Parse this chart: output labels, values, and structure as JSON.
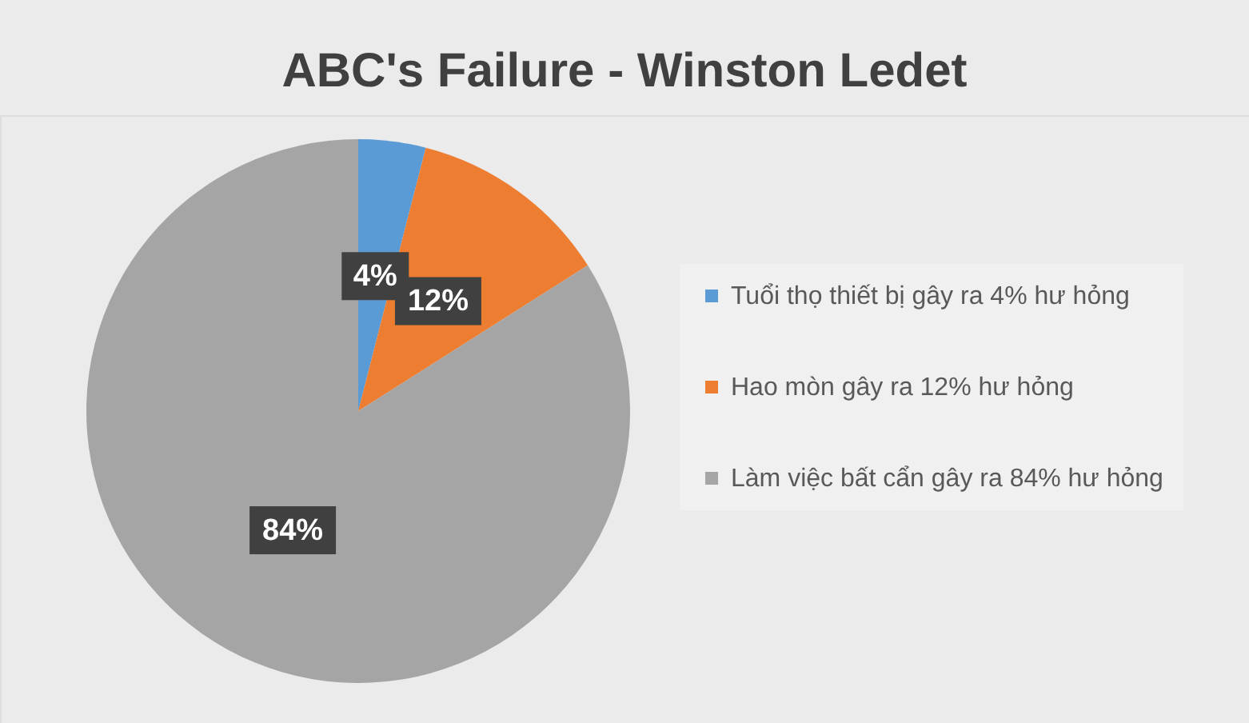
{
  "chart_data": {
    "type": "pie",
    "title": "ABC's Failure - Winston Ledet",
    "categories": [
      "Tuổi thọ thiết bị gây ra 4% hư hỏng",
      "Hao mòn gây ra 12% hư hỏng",
      "Làm việc bất cẩn gây ra 84% hư hỏng"
    ],
    "values": [
      4,
      12,
      84
    ],
    "colors": [
      "#5b9bd5",
      "#ed7d31",
      "#a5a5a5"
    ],
    "value_labels": [
      "4%",
      "12%",
      "84%"
    ],
    "legend": "right"
  }
}
